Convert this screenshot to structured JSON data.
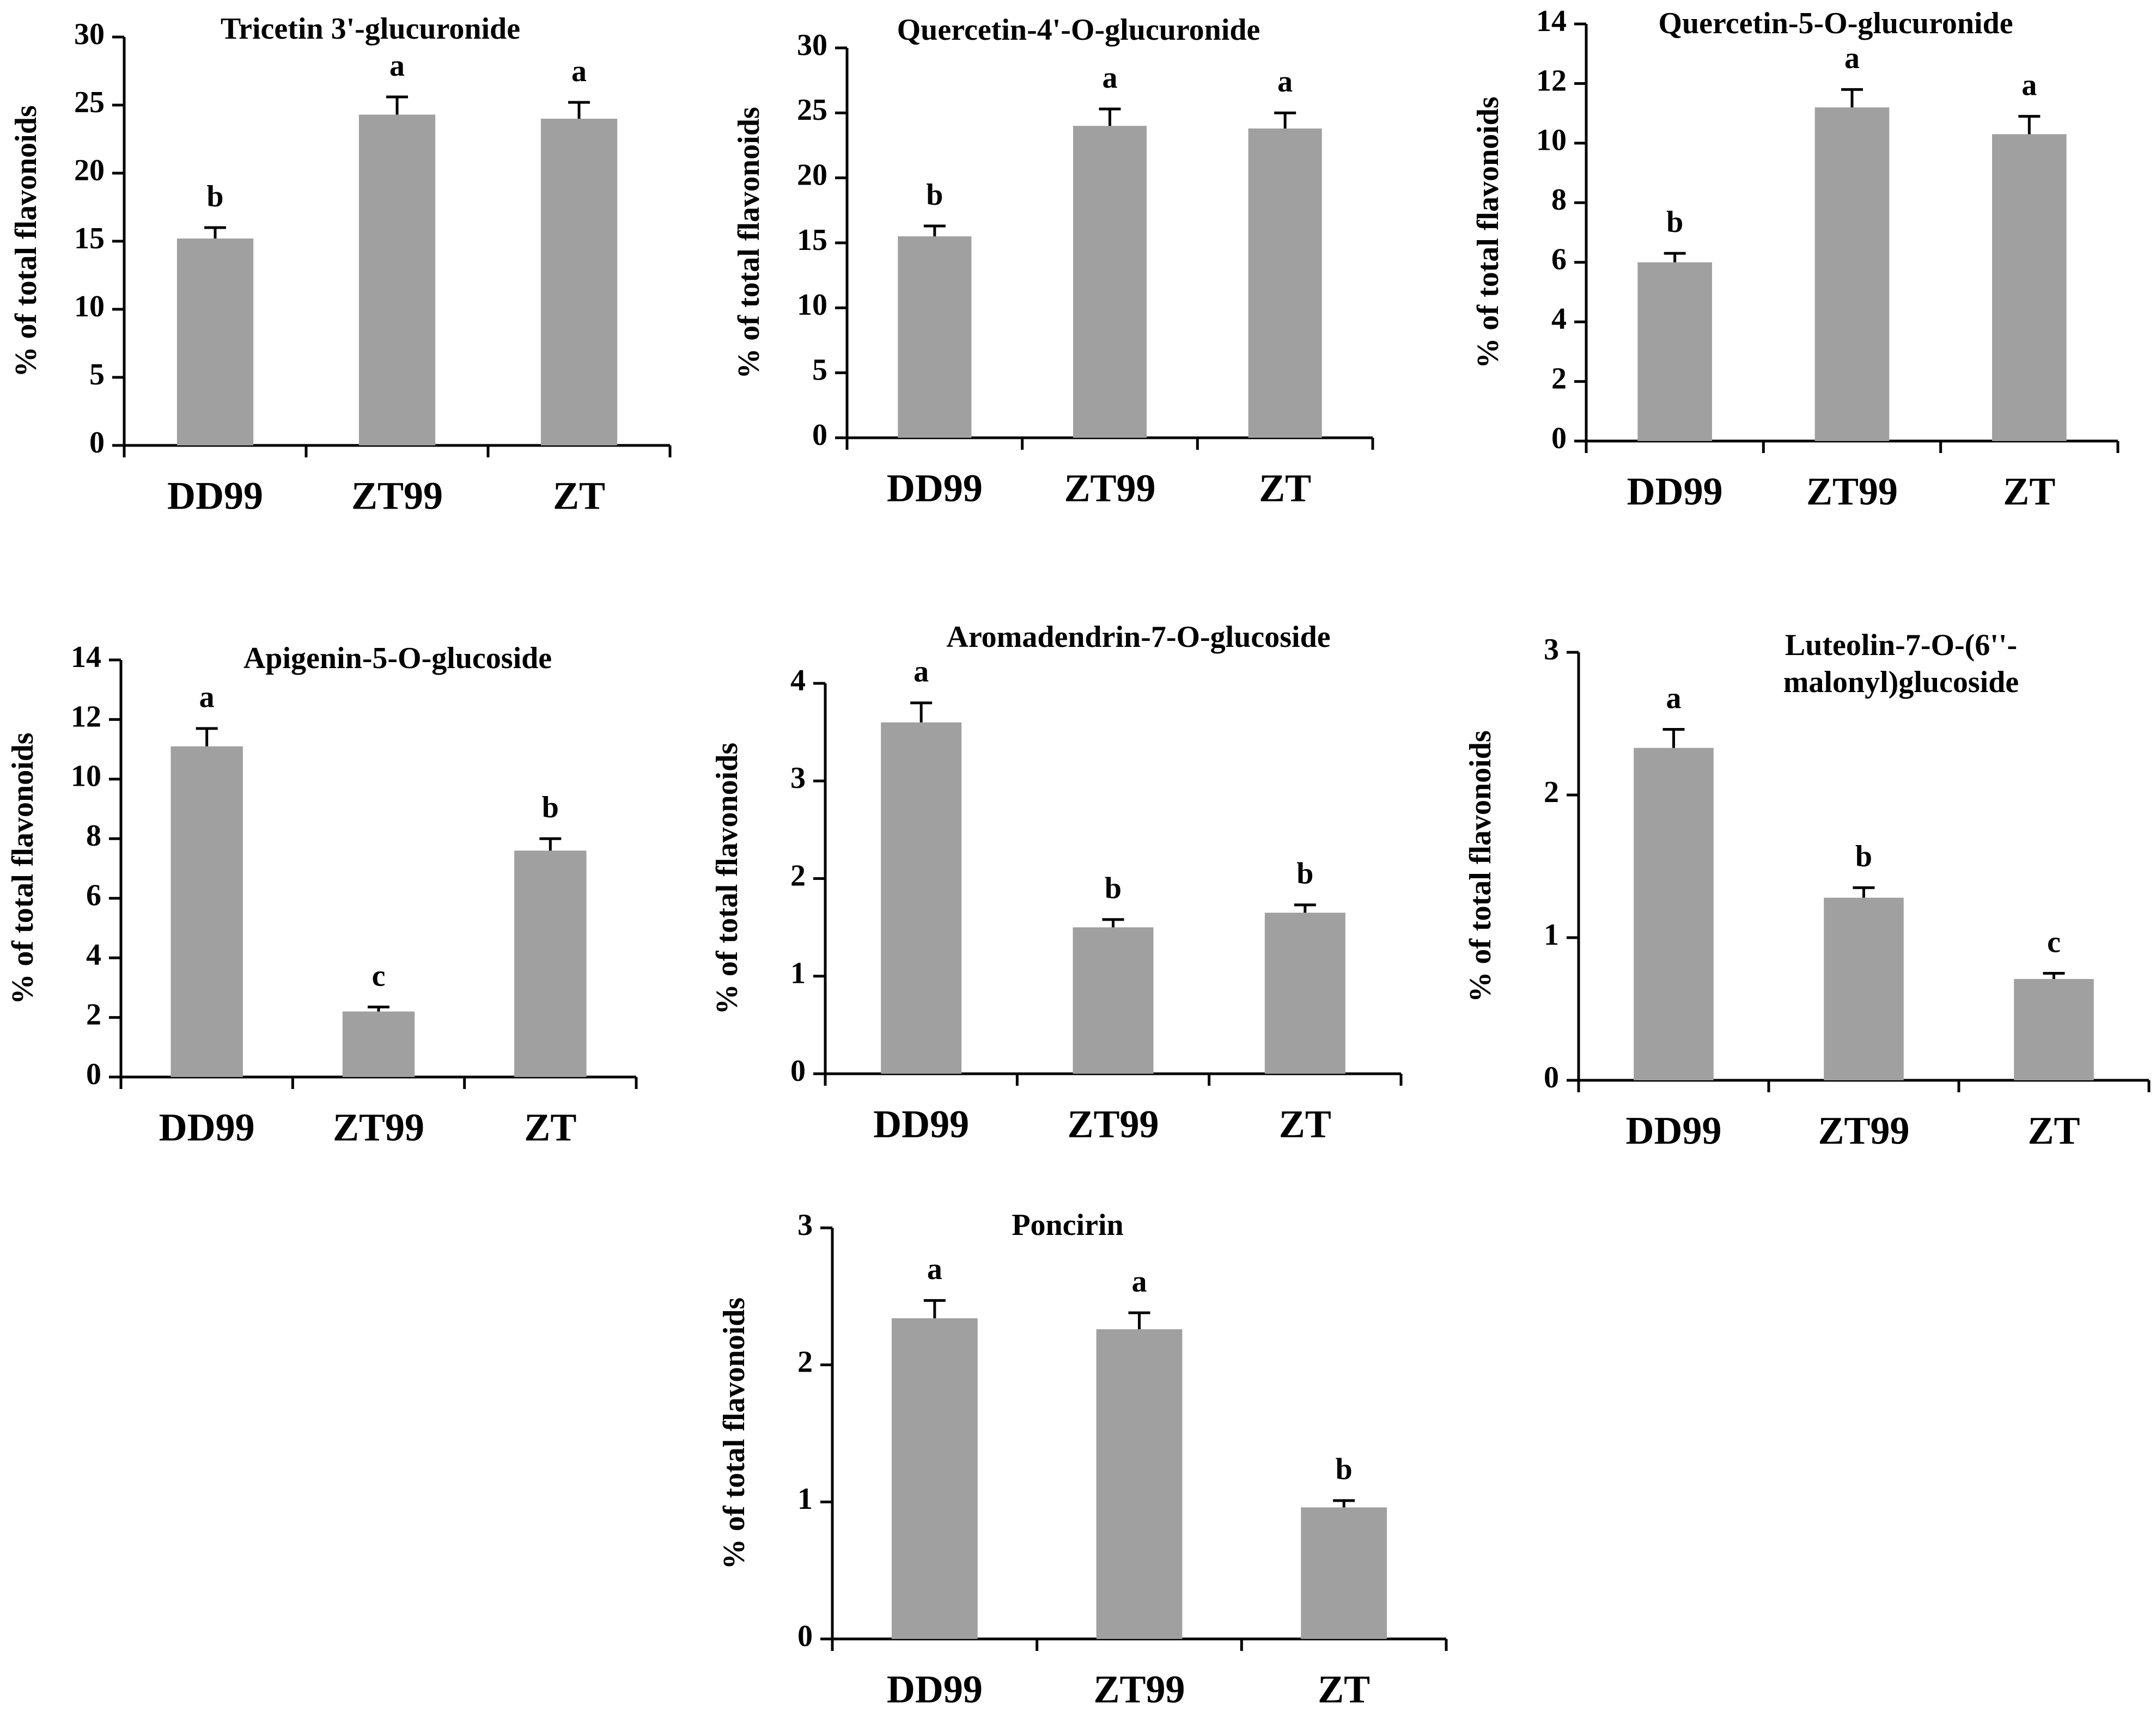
{
  "figure": {
    "bar_color": "#a0a0a0",
    "axis_color": "#000000"
  },
  "chart_data": [
    {
      "type": "bar",
      "title": "Tricetin 3'-glucuronide",
      "ylabel": "% of total flavonoids",
      "xlabel": "",
      "categories": [
        "DD99",
        "ZT99",
        "ZT"
      ],
      "values": [
        15.2,
        24.3,
        24.0
      ],
      "errors": [
        0.8,
        1.3,
        1.2
      ],
      "significance": [
        "b",
        "a",
        "a"
      ],
      "ylim": [
        0,
        30
      ],
      "yticks": [
        0,
        5,
        10,
        15,
        20,
        25,
        30
      ],
      "grid": false
    },
    {
      "type": "bar",
      "title": "Quercetin-4'-O-glucuronide",
      "ylabel": "% of total flavonoids",
      "xlabel": "",
      "categories": [
        "DD99",
        "ZT99",
        "ZT"
      ],
      "values": [
        15.5,
        24.0,
        23.8
      ],
      "errors": [
        0.8,
        1.3,
        1.2
      ],
      "significance": [
        "b",
        "a",
        "a"
      ],
      "ylim": [
        0,
        30
      ],
      "yticks": [
        0,
        5,
        10,
        15,
        20,
        25,
        30
      ],
      "grid": false
    },
    {
      "type": "bar",
      "title": "Quercetin-5-O-glucuronide",
      "ylabel": "% of total flavonoids",
      "xlabel": "",
      "categories": [
        "DD99",
        "ZT99",
        "ZT"
      ],
      "values": [
        6.0,
        11.2,
        10.3
      ],
      "errors": [
        0.3,
        0.6,
        0.6
      ],
      "significance": [
        "b",
        "a",
        "a"
      ],
      "ylim": [
        0,
        14
      ],
      "yticks": [
        0,
        2,
        4,
        6,
        8,
        10,
        12,
        14
      ],
      "grid": false
    },
    {
      "type": "bar",
      "title": "Apigenin-5-O-glucoside",
      "ylabel": "% of total flavonoids",
      "xlabel": "",
      "categories": [
        "DD99",
        "ZT99",
        "ZT"
      ],
      "values": [
        11.1,
        2.2,
        7.6
      ],
      "errors": [
        0.6,
        0.15,
        0.4
      ],
      "significance": [
        "a",
        "c",
        "b"
      ],
      "ylim": [
        0,
        14
      ],
      "yticks": [
        0,
        2,
        4,
        6,
        8,
        10,
        12,
        14
      ],
      "grid": false
    },
    {
      "type": "bar",
      "title": "Aromadendrin-7-O-glucoside",
      "ylabel": "% of total flavonoids",
      "xlabel": "",
      "categories": [
        "DD99",
        "ZT99",
        "ZT"
      ],
      "values": [
        3.6,
        1.5,
        1.65
      ],
      "errors": [
        0.2,
        0.08,
        0.08
      ],
      "significance": [
        "a",
        "b",
        "b"
      ],
      "ylim": [
        0,
        4
      ],
      "yticks": [
        0,
        1,
        2,
        3,
        4
      ],
      "grid": false
    },
    {
      "type": "bar",
      "title": "Luteolin-7-O-(6''-malonyl)glucoside",
      "title_lines": [
        "Luteolin-7-O-(6''-",
        "malonyl)glucoside"
      ],
      "ylabel": "% of total flavonoids",
      "xlabel": "",
      "categories": [
        "DD99",
        "ZT99",
        "ZT"
      ],
      "values": [
        2.33,
        1.28,
        0.71
      ],
      "errors": [
        0.13,
        0.07,
        0.04
      ],
      "significance": [
        "a",
        "b",
        "c"
      ],
      "ylim": [
        0,
        3
      ],
      "yticks": [
        0,
        1,
        2,
        3
      ],
      "grid": false
    },
    {
      "type": "bar",
      "title": "Poncirin",
      "ylabel": "% of total flavonoids",
      "xlabel": "",
      "categories": [
        "DD99",
        "ZT99",
        "ZT"
      ],
      "values": [
        2.34,
        2.26,
        0.96
      ],
      "errors": [
        0.13,
        0.12,
        0.05
      ],
      "significance": [
        "a",
        "a",
        "b"
      ],
      "ylim": [
        0,
        3
      ],
      "yticks": [
        0,
        1,
        2,
        3
      ],
      "grid": false
    }
  ]
}
